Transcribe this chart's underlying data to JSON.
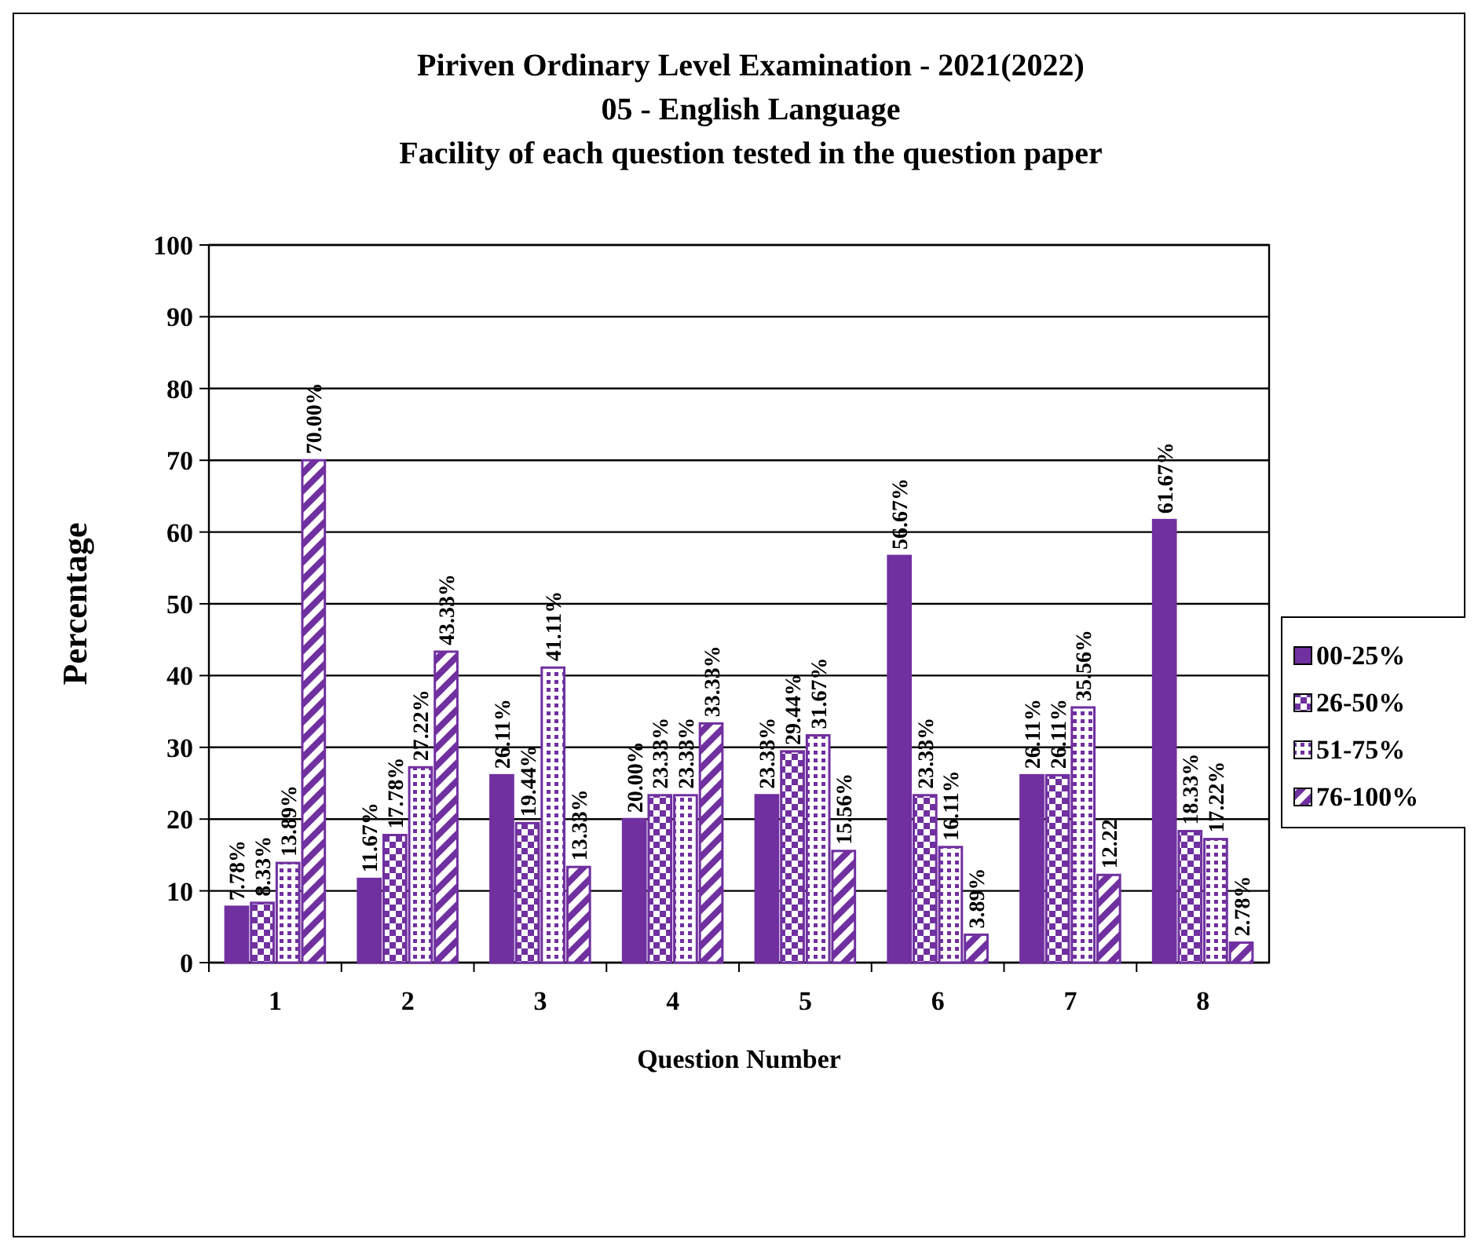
{
  "chart_data": {
    "type": "bar",
    "title": "Piriven Ordinary Level Examination - 2021(2022)",
    "subtitle": "05 - English Language\nFacility of each question tested in the question paper",
    "xlabel": "Question Number",
    "ylabel": "Percentage",
    "categories": [
      "1",
      "2",
      "3",
      "4",
      "5",
      "6",
      "7",
      "8"
    ],
    "series": [
      {
        "name": "00-25%",
        "color": "#7030a0",
        "values": [
          7.78,
          11.67,
          26.11,
          20.0,
          23.33,
          56.67,
          26.11,
          61.67
        ],
        "value_labels": [
          "7.78%",
          "11.67%",
          "26.11%",
          "20.00%",
          "23.33%",
          "56.67%",
          "26.11%",
          "61.67%"
        ]
      },
      {
        "name": "26-50%",
        "color": "#7030a0",
        "values": [
          8.33,
          17.78,
          19.44,
          23.33,
          29.44,
          23.33,
          26.11,
          18.33
        ],
        "value_labels": [
          "8.33%",
          "17.78%",
          "19.44%",
          "23.33%",
          "29.44%",
          "23.33%",
          "26.11%",
          "18.33%"
        ]
      },
      {
        "name": "51-75%",
        "color": "#7030a0",
        "values": [
          13.89,
          27.22,
          41.11,
          23.33,
          31.67,
          16.11,
          35.56,
          17.22
        ],
        "value_labels": [
          "13.89%",
          "27.22%",
          "41.11%",
          "23.33%",
          "31.67%",
          "16.11%",
          "35.56%",
          "17.22%"
        ]
      },
      {
        "name": "76-100%",
        "color": "#7030a0",
        "values": [
          70.0,
          43.33,
          13.33,
          33.33,
          15.56,
          3.89,
          12.22,
          2.78
        ],
        "value_labels": [
          "70.00%",
          "43.33%",
          "13.33%",
          "33.33%",
          "15.56%",
          "3.89%",
          "12.22",
          "2.78%"
        ]
      }
    ],
    "ylim": [
      0,
      100
    ],
    "yticks": [
      0,
      10,
      20,
      30,
      40,
      50,
      60,
      70,
      80,
      90,
      100
    ],
    "grid": "y",
    "legend": "right"
  }
}
